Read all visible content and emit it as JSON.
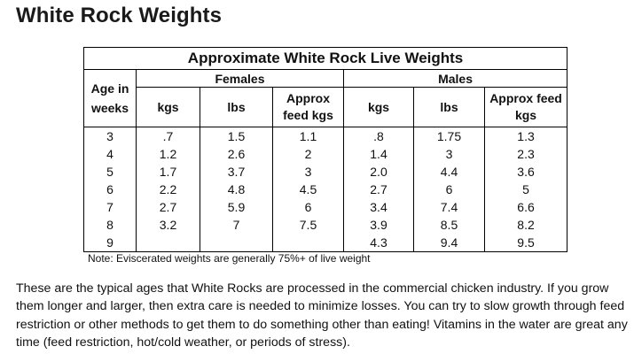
{
  "title": "White Rock Weights",
  "table": {
    "caption": "Approximate White Rock Live Weights",
    "age_header": "Age in weeks",
    "groups": [
      "Females",
      "Males"
    ],
    "columns": [
      "kgs",
      "lbs",
      "Approx feed kgs",
      "kgs",
      "lbs",
      "Approx feed kgs"
    ],
    "rows": [
      [
        "3",
        ".7",
        "1.5",
        "1.1",
        ".8",
        "1.75",
        "1.3"
      ],
      [
        "4",
        "1.2",
        "2.6",
        "2",
        "1.4",
        "3",
        "2.3"
      ],
      [
        "5",
        "1.7",
        "3.7",
        "3",
        "2.0",
        "4.4",
        "3.6"
      ],
      [
        "6",
        "2.2",
        "4.8",
        "4.5",
        "2.7",
        "6",
        "5"
      ],
      [
        "7",
        "2.7",
        "5.9",
        "6",
        "3.4",
        "7.4",
        "6.6"
      ],
      [
        "8",
        "3.2",
        "7",
        "7.5",
        "3.9",
        "8.5",
        "8.2"
      ],
      [
        "9",
        "",
        "",
        "",
        "4.3",
        "9.4",
        "9.5"
      ]
    ],
    "note": "Note:  Eviscerated weights are generally 75%+ of live weight"
  },
  "paragraph": "These are the typical ages that White Rocks are processed in the commercial chicken industry.  If you grow them longer and larger, then extra care is needed to minimize losses.  You can try to slow growth through feed restriction or other methods to get them to do something other than eating!  Vitamins in the water are great any time (feed restriction, hot/cold weather, or periods of stress)."
}
